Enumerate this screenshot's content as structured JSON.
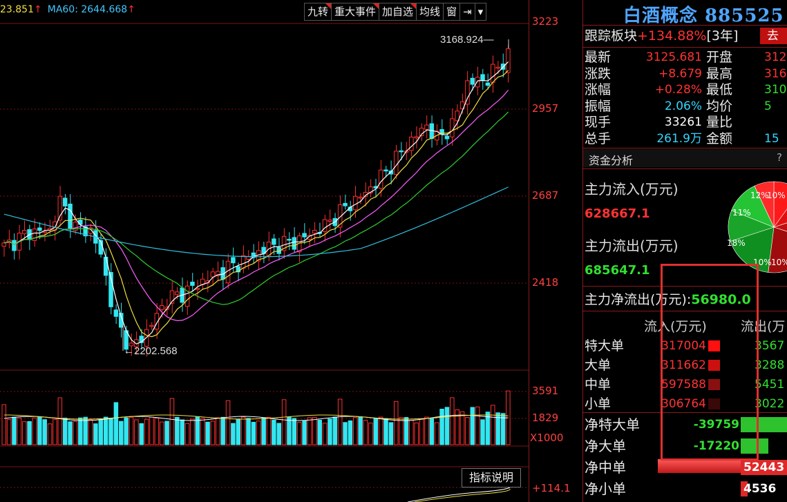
{
  "header": {
    "ma_fragment": "23.851",
    "ma60_label": "MA60: 2644.668",
    "up_arrow": "↑"
  },
  "toolbar": [
    "九转",
    "重大事件",
    "加自选",
    "均线",
    "窗",
    "⇥",
    "▾"
  ],
  "price_axis": [
    "3223",
    "2957",
    "2687",
    "2418"
  ],
  "volume_axis": [
    "3591",
    "1829",
    "X1000"
  ],
  "indicator_axis": "+114.1",
  "annotations": {
    "high": "3168.924",
    "low": "2202.568",
    "indicator_button": "指标说明"
  },
  "sector": {
    "title": "白酒概念 885525",
    "track_label": "跟踪板块",
    "track_value": "+134.88%",
    "track_period": "[3年]",
    "track_button": "去"
  },
  "quote": [
    {
      "label": "最新",
      "value": "3125.681",
      "label2": "开盘",
      "value2": "312"
    },
    {
      "label": "涨跌",
      "value": "+8.679",
      "label2": "最高",
      "value2": "316"
    },
    {
      "label": "涨幅",
      "value": "+0.28%",
      "label2": "最低",
      "value2": "310"
    },
    {
      "label": "振幅",
      "value": "2.06%",
      "label2": "均价",
      "value2": "5"
    },
    {
      "label": "现手",
      "value": "33261",
      "label2": "量比",
      "value2": ""
    },
    {
      "label": "总手",
      "value": "261.9万",
      "label2": "金额",
      "value2": "15"
    }
  ],
  "funds": {
    "header": "资金分析",
    "help": "?",
    "inflow_label": "主力流入(万元)",
    "inflow_value": "628667.1",
    "outflow_label": "主力流出(万元)",
    "outflow_value": "685647.1",
    "net_label": "主力净流出(万元):",
    "net_value": "56980.0",
    "col_in": "流入(万元)",
    "col_out": "流出(万",
    "rows": [
      {
        "label": "特大单",
        "in": "317004",
        "out": "3567"
      },
      {
        "label": "大单",
        "in": "311662",
        "out": "3288"
      },
      {
        "label": "中单",
        "in": "597588",
        "out": "5451"
      },
      {
        "label": "小单",
        "in": "306764",
        "out": "3022"
      }
    ],
    "net_rows": [
      {
        "label": "净特大单",
        "value": "-39759"
      },
      {
        "label": "净大单",
        "value": "-17220"
      },
      {
        "label": "净中单",
        "value": "52443"
      },
      {
        "label": "净小单",
        "value": "4536"
      }
    ],
    "pie_labels": [
      "12%",
      "10%",
      "11%",
      "18%",
      "10%",
      "10%"
    ]
  },
  "colors": {
    "up": "#ff3333",
    "down": "#33e6f0",
    "grid": "#8a1a1a",
    "title": "#4fa6ff",
    "highlight_box": "#e03030"
  }
}
